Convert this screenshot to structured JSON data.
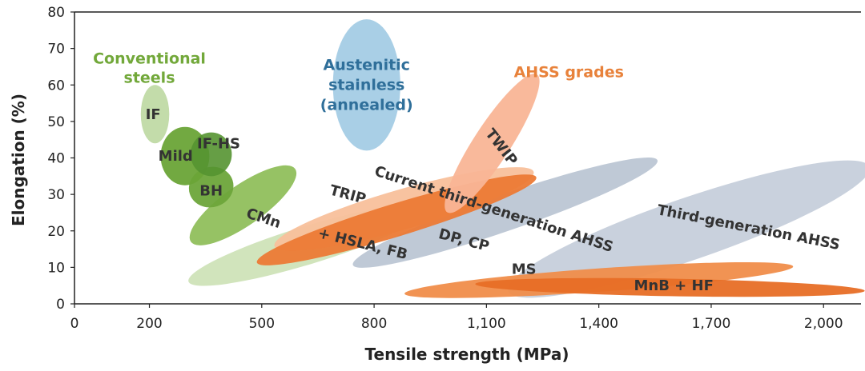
{
  "chart_data": {
    "type": "area",
    "title": "",
    "xlabel": "Tensile strength (MPa)",
    "ylabel": "Elongation (%)",
    "xlim": [
      0,
      2100
    ],
    "ylim": [
      0,
      80
    ],
    "x_ticks": [
      "0",
      "200",
      "500",
      "800",
      "1,100",
      "1,400",
      "1,700",
      "2,000"
    ],
    "x_tick_values": [
      0,
      200,
      500,
      800,
      1100,
      1400,
      1700,
      2000
    ],
    "y_ticks": [
      "0",
      "10",
      "20",
      "30",
      "40",
      "50",
      "60",
      "70",
      "80"
    ],
    "y_tick_values": [
      0,
      10,
      20,
      30,
      40,
      50,
      60,
      70,
      80
    ],
    "grid": false,
    "groups": [
      {
        "name": "Conventional steels",
        "color": "#72a83a",
        "label_x": 200,
        "label_y": 64.5,
        "lines": [
          "Conventional",
          "steels"
        ]
      },
      {
        "name": "AHSS grades",
        "color": "#e8823b",
        "label_x": 1320,
        "label_y": 63.5,
        "lines": [
          "AHSS grades"
        ]
      }
    ],
    "regions": [
      {
        "name": "Third-generation AHSS",
        "label": "Third-generation AHSS",
        "group": "AHSS",
        "color": "#c3ccd9",
        "opacity": 0.9,
        "cx": 1640,
        "cy": 20.5,
        "rx": 510,
        "ry": 8.5,
        "angle": 19,
        "label_x": 1800,
        "label_y": 21,
        "label_angle": 11
      },
      {
        "name": "Current third-generation AHSS",
        "label": "Current third-generation AHSS",
        "group": "AHSS",
        "color": "#bcc6d4",
        "opacity": 0.95,
        "cx": 1150,
        "cy": 25,
        "rx": 430,
        "ry": 5,
        "angle": 19,
        "label_x": 1120,
        "label_y": 26,
        "label_angle": 18
      },
      {
        "name": "Austenitic stainless (annealed)",
        "lines": [
          "Austenitic",
          "stainless",
          "(annealed)"
        ],
        "group": "Austenitic",
        "color": "#a9cfe6",
        "opacity": 1,
        "cx": 780,
        "cy": 60,
        "rx": 90,
        "ry": 18,
        "angle": 0,
        "label_x": 780,
        "label_y": 60,
        "label_angle": 0
      },
      {
        "name": "HSLA, FB",
        "label": "+  HSLA, FB",
        "group": "Conventional",
        "color": "#cfe3b8",
        "opacity": 0.95,
        "cx": 620,
        "cy": 16,
        "rx": 330,
        "ry": 5.2,
        "angle": 17,
        "label_x": 770,
        "label_y": 16.5,
        "label_angle": 14
      },
      {
        "name": "CMn",
        "label": "CMn",
        "group": "Conventional",
        "color": "#90bf5c",
        "opacity": 0.95,
        "cx": 450,
        "cy": 27,
        "rx": 170,
        "ry": 5.5,
        "angle": 35,
        "label_x": 505,
        "label_y": 23.5,
        "label_angle": 18
      },
      {
        "name": "BH",
        "label": "BH",
        "group": "Conventional",
        "color": "#6da53a",
        "opacity": 0.95,
        "cx": 365,
        "cy": 32,
        "rx": 60,
        "ry": 5.5,
        "angle": 18,
        "label_x": 365,
        "label_y": 31,
        "label_angle": 0
      },
      {
        "name": "Mild",
        "label": "Mild",
        "group": "Conventional",
        "color": "#6aa437",
        "opacity": 0.95,
        "cx": 295,
        "cy": 40.5,
        "rx": 65,
        "ry": 8,
        "angle": 0,
        "label_x": 270,
        "label_y": 40.5,
        "label_angle": 0
      },
      {
        "name": "IF-HS",
        "label": "IF-HS",
        "group": "Conventional",
        "color": "#559431",
        "opacity": 0.9,
        "cx": 365,
        "cy": 41,
        "rx": 55,
        "ry": 6,
        "angle": 0,
        "label_x": 385,
        "label_y": 44,
        "label_angle": 0
      },
      {
        "name": "IF",
        "label": "IF",
        "group": "Conventional",
        "color": "#c3dcaa",
        "opacity": 1,
        "cx": 215,
        "cy": 52,
        "rx": 38,
        "ry": 8,
        "angle": 0,
        "label_x": 210,
        "label_y": 52,
        "label_angle": 0
      },
      {
        "name": "TRIP",
        "label": "TRIP",
        "group": "AHSS",
        "color": "#f8c09b",
        "opacity": 0.95,
        "cx": 880,
        "cy": 26,
        "rx": 360,
        "ry": 5.5,
        "angle": 16,
        "label_x": 730,
        "label_y": 30,
        "label_angle": 15
      },
      {
        "name": "DP, CP",
        "label": "DP, CP",
        "group": "AHSS",
        "color": "#ec7a35",
        "opacity": 0.95,
        "cx": 860,
        "cy": 23,
        "rx": 390,
        "ry": 4.5,
        "angle": 17,
        "label_x": 1040,
        "label_y": 17.5,
        "label_angle": 15
      },
      {
        "name": "MS",
        "label": "MS",
        "group": "AHSS",
        "color": "#f08d4a",
        "opacity": 0.95,
        "cx": 1400,
        "cy": 6.5,
        "rx": 520,
        "ry": 3.2,
        "angle": 4,
        "label_x": 1200,
        "label_y": 9.5,
        "label_angle": 0
      },
      {
        "name": "MnB + HF",
        "label": "MnB + HF",
        "group": "AHSS",
        "color": "#e76e26",
        "opacity": 0.95,
        "cx": 1590,
        "cy": 4.5,
        "rx": 520,
        "ry": 2.4,
        "angle": -1,
        "label_x": 1600,
        "label_y": 5,
        "label_angle": 0
      },
      {
        "name": "TWIP",
        "label": "TWIP",
        "group": "AHSS",
        "color": "#f9b596",
        "opacity": 0.95,
        "cx": 1115,
        "cy": 44,
        "rx": 220,
        "ry": 5,
        "angle": 57,
        "label_x": 1140,
        "label_y": 43,
        "label_angle": 52
      }
    ]
  }
}
